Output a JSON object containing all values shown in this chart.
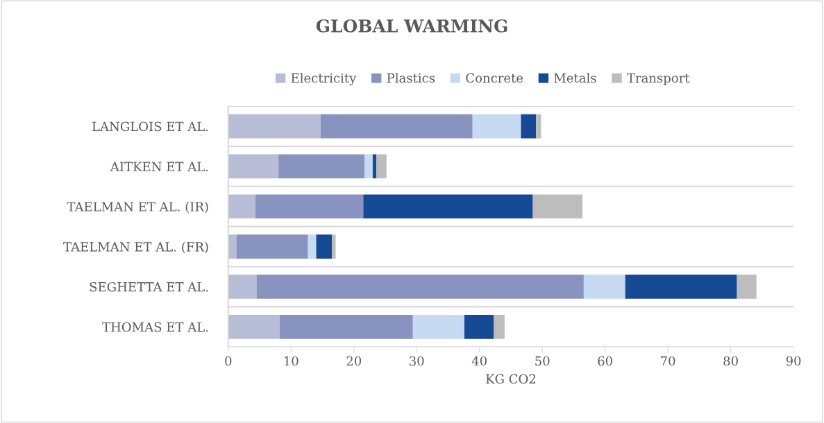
{
  "chart_data": {
    "type": "bar",
    "orientation": "horizontal",
    "stacked": true,
    "title": "GLOBAL WARMING",
    "xlabel": "KG CO2",
    "categories": [
      "LANGLOIS ET AL.",
      "AITKEN ET AL.",
      "TAELMAN ET AL. (IR)",
      "TAELMAN ET AL. (FR)",
      "SEGHETTA ET AL.",
      "THOMAS ET AL."
    ],
    "series": [
      {
        "name": "Electricity",
        "color": "#b7bcd7",
        "values": [
          14.7,
          8.0,
          4.3,
          1.3,
          4.5,
          8.2
        ]
      },
      {
        "name": "Plastics",
        "color": "#8894bf",
        "values": [
          24.2,
          13.7,
          17.2,
          11.4,
          52.1,
          21.2
        ]
      },
      {
        "name": "Concrete",
        "color": "#c7daf4",
        "values": [
          7.7,
          1.3,
          null,
          1.3,
          6.6,
          8.2
        ]
      },
      {
        "name": "Metals",
        "color": "#174a94",
        "values": [
          2.4,
          0.6,
          27.0,
          2.5,
          17.8,
          4.7
        ]
      },
      {
        "name": "Transport",
        "color": "#bdbdbd",
        "values": [
          0.8,
          1.6,
          7.9,
          0.6,
          3.1,
          1.7
        ]
      }
    ],
    "xlim": [
      0,
      90
    ],
    "xticks": [
      0,
      10,
      20,
      30,
      40,
      50,
      60,
      70,
      80,
      90
    ],
    "grid": "y",
    "legend": "top"
  }
}
